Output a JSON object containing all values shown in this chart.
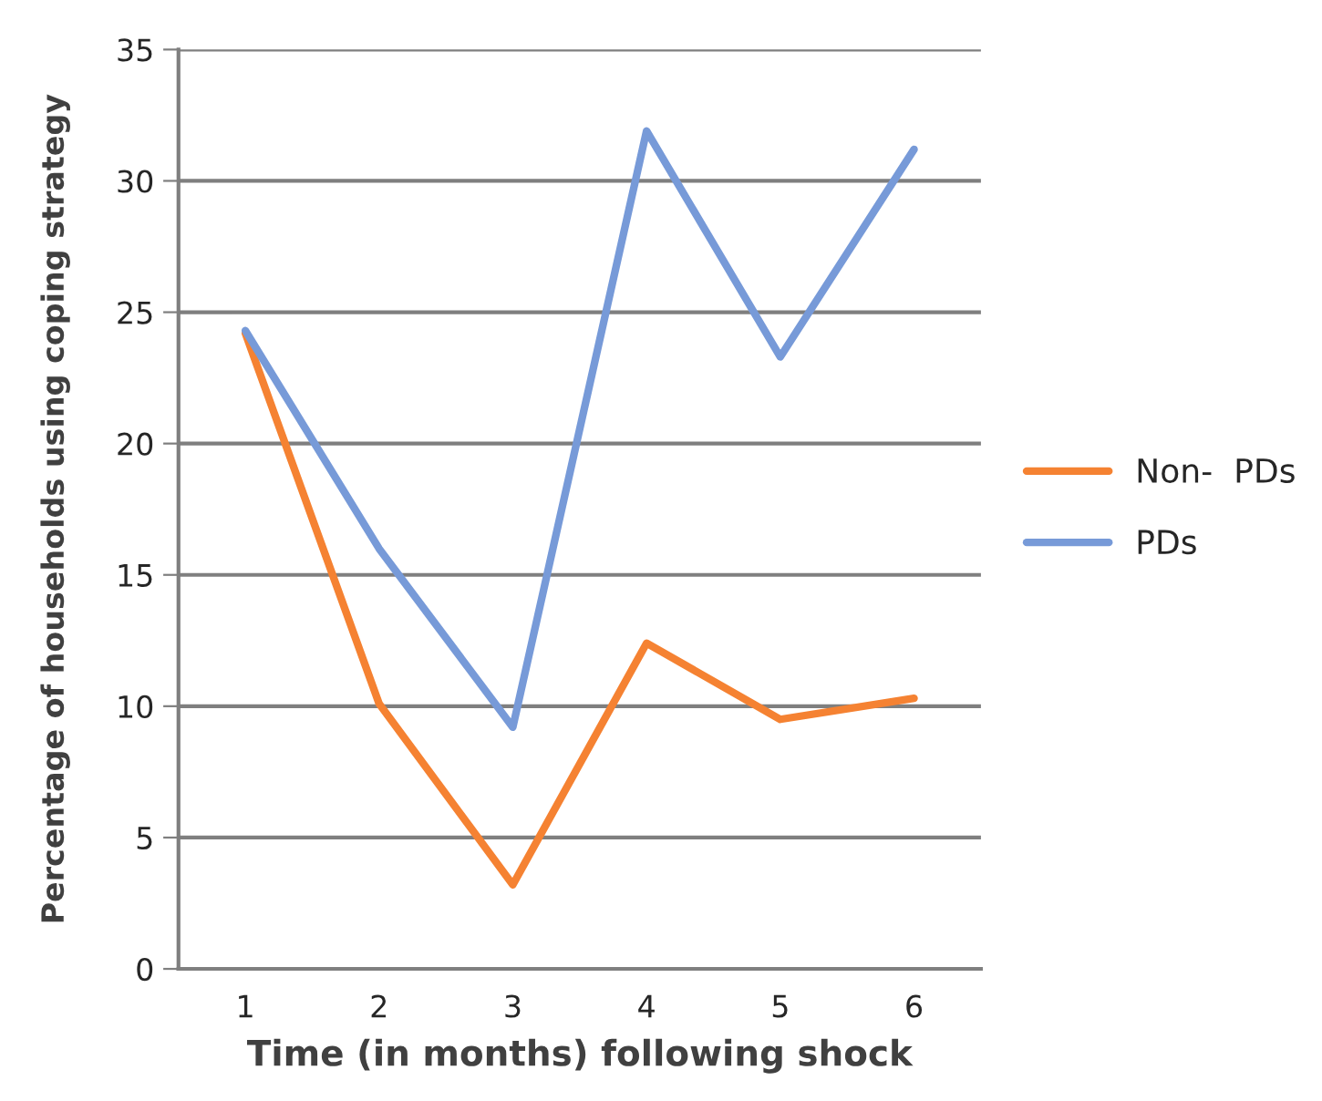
{
  "chart_data": {
    "type": "line",
    "xlabel": "Time (in months) following shock",
    "ylabel": "Percentage of households using coping strategy",
    "categories": [
      "1",
      "2",
      "3",
      "4",
      "5",
      "6"
    ],
    "series": [
      {
        "name": "Non-  PDs",
        "color": "#f58232",
        "values": [
          24.2,
          10.1,
          3.2,
          12.4,
          9.5,
          10.3
        ]
      },
      {
        "name": "PDs",
        "color": "#779ad8",
        "values": [
          24.3,
          16.0,
          9.2,
          31.9,
          23.3,
          31.2
        ]
      }
    ],
    "ylim": [
      0,
      35
    ],
    "yticks": [
      0,
      5,
      10,
      15,
      20,
      25,
      30,
      35
    ],
    "grid": "y",
    "legend": "right",
    "marker": "none",
    "line_style": "solid"
  }
}
